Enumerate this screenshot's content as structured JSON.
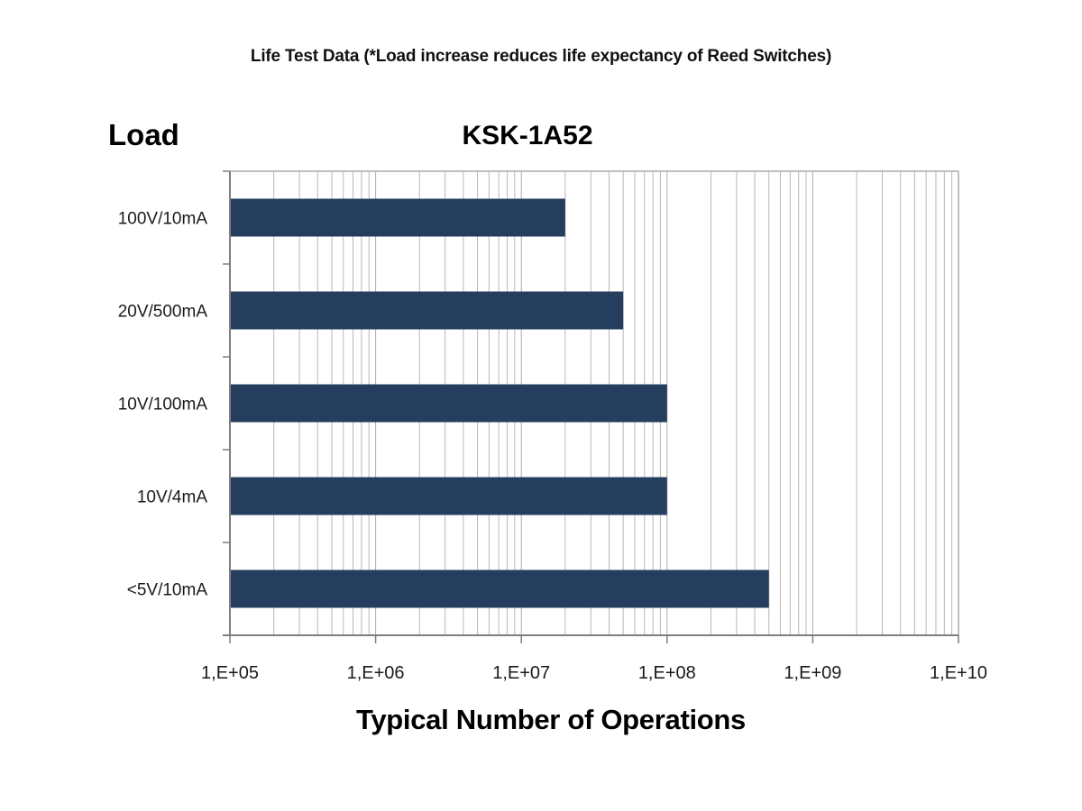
{
  "page": {
    "title": "Life Test Data (*Load increase reduces life expectancy of Reed Switches)",
    "y_axis_title": "Load",
    "x_axis_title": "Typical Number of Operations"
  },
  "chart_data": {
    "type": "bar",
    "orientation": "horizontal",
    "title": "KSK-1A52",
    "categories": [
      "100V/10mA",
      "20V/500mA",
      "10V/100mA",
      "10V/4mA",
      "<5V/10mA"
    ],
    "values": [
      20000000,
      50000000,
      100000000,
      100000000,
      500000000
    ],
    "xlabel": "Typical Number of Operations",
    "ylabel": "Load",
    "x_scale": "log",
    "xlim": [
      100000,
      10000000000
    ],
    "x_tick_labels": [
      "1,E+05",
      "1,E+06",
      "1,E+07",
      "1,E+08",
      "1,E+09",
      "1,E+10"
    ],
    "grid": "vertical major and log-minor gridlines",
    "legend": "none",
    "colors": {
      "bar": "#263e5e",
      "grid_minor": "#b8b8b8",
      "grid_major": "#ababab",
      "axis": "#7f7f7f",
      "plot_border": "#ababab"
    }
  }
}
